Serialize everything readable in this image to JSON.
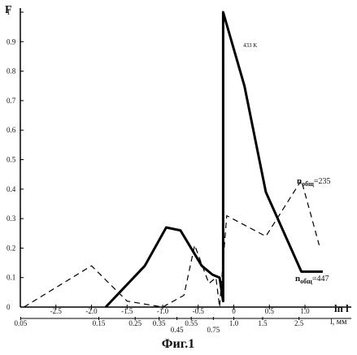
{
  "chart_data": {
    "type": "line",
    "ylabel": "F",
    "xlabel_top": "ln l",
    "xlabel_bottom": "l, мм",
    "caption": "Фиг.1",
    "annotation": "433 K",
    "y_ticks": [
      "0",
      "0.1",
      "0.2",
      "0.3",
      "0.4",
      "0.5",
      "0.6",
      "0.7",
      "0.8",
      "0.9",
      "1"
    ],
    "x_ticks_ln": [
      "-2.5",
      "-2.0",
      "-1.5",
      "-1.0",
      "-0.5",
      "0",
      "0.5",
      "1.0"
    ],
    "x_ticks_l": [
      "0.05",
      "0.15",
      "0.25",
      "0.35",
      "0.45",
      "0.55",
      "0.75",
      "1.0",
      "1.5",
      "2.5"
    ],
    "ylim": [
      0,
      1.0
    ],
    "xlim": [
      -3.0,
      1.4
    ],
    "series": [
      {
        "name": "nобщ=447",
        "style": "solid",
        "color": "#000000",
        "points": [
          [
            -1.8,
            0.0
          ],
          [
            -1.25,
            0.14
          ],
          [
            -0.95,
            0.27
          ],
          [
            -0.75,
            0.26
          ],
          [
            -0.45,
            0.14
          ],
          [
            -0.3,
            0.11
          ],
          [
            -0.2,
            0.1
          ],
          [
            -0.15,
            0.02
          ],
          [
            -0.15,
            1.0
          ],
          [
            0.15,
            0.75
          ],
          [
            0.45,
            0.39
          ],
          [
            0.95,
            0.12
          ],
          [
            1.25,
            0.12
          ]
        ]
      },
      {
        "name": "nобщ=235",
        "style": "dashed",
        "color": "#000000",
        "points": [
          [
            -2.95,
            0.0
          ],
          [
            -2.0,
            0.14
          ],
          [
            -1.5,
            0.02
          ],
          [
            -1.0,
            0.0
          ],
          [
            -0.7,
            0.04
          ],
          [
            -0.55,
            0.21
          ],
          [
            -0.35,
            0.08
          ],
          [
            -0.25,
            0.1
          ],
          [
            -0.2,
            0.0
          ],
          [
            -0.1,
            0.31
          ],
          [
            0.45,
            0.24
          ],
          [
            0.95,
            0.43
          ],
          [
            1.2,
            0.21
          ]
        ]
      }
    ],
    "series_labels": {
      "dashed": {
        "main": "n",
        "sub": "общ",
        "value": "=235"
      },
      "solid": {
        "main": "n",
        "sub": "общ",
        "value": "=447"
      }
    }
  }
}
